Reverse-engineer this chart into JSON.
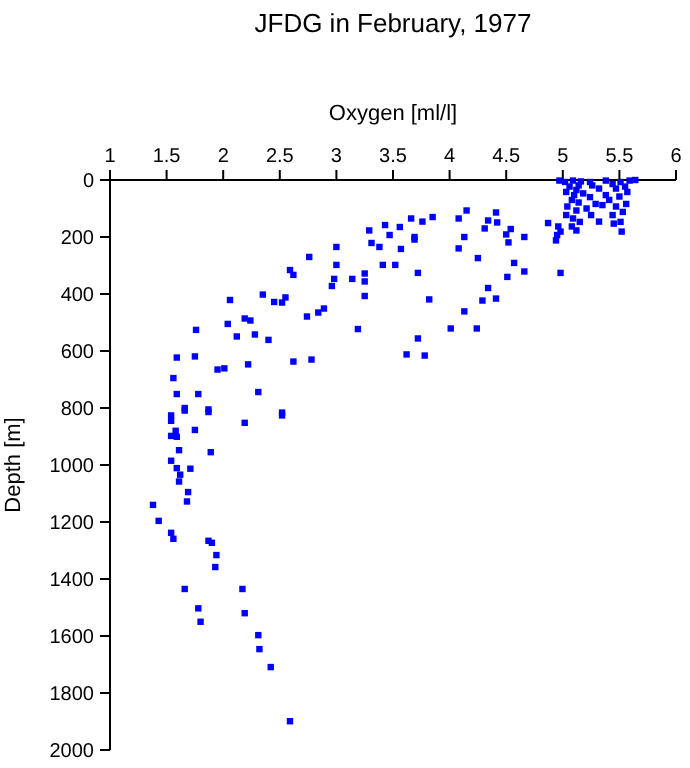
{
  "chart_data": {
    "type": "scatter",
    "title": "JFDG in February, 1977",
    "xlabel": "Oxygen [ml/l]",
    "ylabel": "Depth [m]",
    "xlim": [
      1,
      6
    ],
    "xticks": [
      1,
      1.5,
      2,
      2.5,
      3,
      3.5,
      4,
      4.5,
      5,
      5.5,
      6
    ],
    "ylim": [
      2000,
      0
    ],
    "yticks": [
      0,
      200,
      400,
      600,
      800,
      1000,
      1200,
      1400,
      1600,
      1800,
      2000
    ],
    "marker": "square",
    "grid": false,
    "series": [
      {
        "color": "#0000ff",
        "x": [
          3.29,
          3.43,
          3.56,
          3.66,
          3.76,
          3.85,
          4.08,
          4.15,
          4.34,
          4.31,
          4.41,
          4.42,
          4.54,
          4.5,
          4.66,
          4.52,
          4.57,
          4.66,
          4.51,
          4.25,
          4.13,
          4.08,
          3.31,
          3.38,
          3.47,
          3.57,
          3.69,
          3.69,
          3.0,
          3.0,
          2.76,
          2.59,
          2.62,
          3.41,
          3.52,
          3.72,
          3.25,
          3.25,
          3.14,
          2.98,
          2.96,
          3.25,
          3.82,
          4.34,
          4.41,
          4.29,
          4.13,
          4.01,
          4.24,
          3.72,
          3.62,
          3.78,
          3.19,
          2.89,
          2.84,
          2.74,
          2.55,
          2.52,
          2.45,
          2.35,
          2.24,
          2.19,
          2.28,
          2.4,
          2.04,
          2.12,
          2.06,
          1.76,
          1.59,
          1.75,
          1.95,
          2.01,
          2.22,
          2.62,
          2.78,
          1.56,
          1.59,
          1.78,
          1.66,
          1.87,
          2.31,
          2.52,
          1.54,
          4.87,
          4.98,
          4.94,
          4.95,
          5.52,
          5.45,
          5.32,
          5.25,
          1.66,
          1.87,
          2.52,
          2.19,
          1.54,
          1.58,
          1.75,
          1.54,
          1.59,
          1.61,
          1.89,
          1.54,
          1.59,
          1.71,
          1.62,
          1.61,
          1.69,
          1.68,
          1.38,
          1.43,
          1.54,
          1.56,
          1.87,
          1.9,
          1.94,
          1.93,
          1.66,
          2.17,
          1.78,
          1.8,
          2.19,
          2.31,
          2.32,
          2.42,
          2.59,
          4.97,
          5.02,
          5.09,
          5.16,
          5.14,
          5.06,
          5.12,
          5.03,
          5.1,
          5.18,
          5.08,
          5.14,
          5.04,
          5.12,
          5.03,
          5.09,
          5.15,
          5.08,
          5.12,
          4.98,
          4.96,
          5.24,
          5.26,
          5.38,
          5.44,
          5.51,
          5.59,
          5.64,
          5.47,
          5.55,
          5.57,
          5.5,
          5.41,
          5.35,
          5.29,
          5.47,
          5.56,
          5.53,
          5.44,
          5.51,
          5.24,
          5.21,
          5.38,
          5.32
        ],
        "values": [
          177,
          158,
          165,
          135,
          146,
          130,
          135,
          107,
          142,
          170,
          114,
          149,
          172,
          191,
          200,
          219,
          291,
          321,
          340,
          274,
          200,
          240,
          221,
          235,
          193,
          242,
          200,
          209,
          235,
          298,
          270,
          316,
          333,
          298,
          298,
          326,
          328,
          356,
          347,
          347,
          372,
          407,
          419,
          379,
          416,
          423,
          461,
          521,
          521,
          556,
          612,
          616,
          523,
          451,
          465,
          479,
          412,
          430,
          428,
          402,
          493,
          486,
          542,
          561,
          505,
          549,
          421,
          526,
          623,
          619,
          665,
          661,
          647,
          637,
          630,
          695,
          751,
          751,
          800,
          805,
          744,
          816,
          826,
          151,
          326,
          212,
          193,
          181,
          153,
          146,
          123,
          809,
          814,
          826,
          852,
          845,
          880,
          877,
          898,
          901,
          948,
          955,
          985,
          1011,
          1013,
          1034,
          1058,
          1095,
          1128,
          1140,
          1196,
          1238,
          1259,
          1266,
          1273,
          1316,
          1358,
          1435,
          1435,
          1503,
          1550,
          1520,
          1597,
          1646,
          1709,
          1899,
          2,
          7,
          2,
          5,
          19,
          23,
          35,
          42,
          53,
          47,
          70,
          79,
          93,
          107,
          123,
          135,
          147,
          163,
          177,
          181,
          163,
          7,
          19,
          2,
          14,
          7,
          2,
          0,
          30,
          23,
          42,
          58,
          70,
          88,
          84,
          93,
          84,
          112,
          123,
          147,
          60,
          100,
          53,
          30
        ]
      }
    ]
  }
}
